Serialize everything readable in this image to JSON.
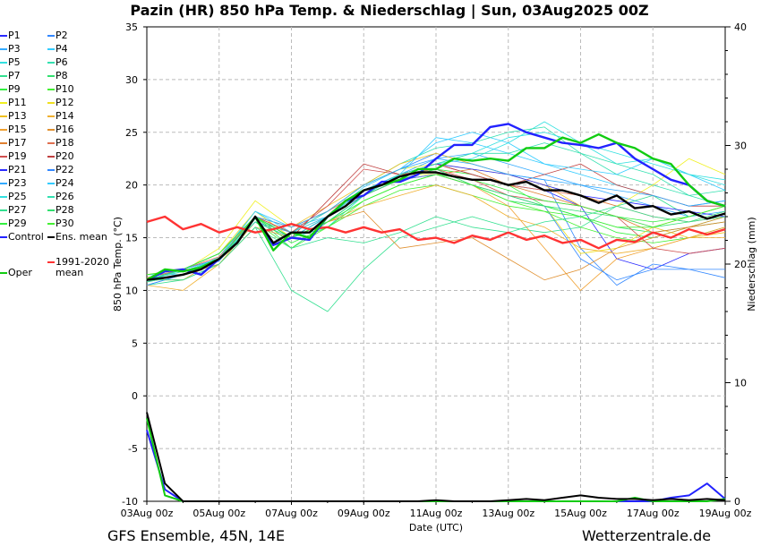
{
  "title": "Pazin  (HR)  850 hPa Temp. & Niederschlag | Sun, 03Aug2025 00Z",
  "footer": {
    "model": "GFS Ensemble, 45N, 14E",
    "source": "Wetterzentrale.de"
  },
  "chart_data": {
    "type": "line",
    "title": "Pazin  (HR)  850 hPa Temp. & Niederschlag | Sun, 03Aug2025 00Z",
    "xlabel": "Date (UTC)",
    "ylabel": "850 hPa Temp. (°C)",
    "y2label": "Niederschlag (mm)",
    "ylim": [
      -10,
      35
    ],
    "y2lim": [
      0,
      40
    ],
    "xlim_days": [
      0,
      16
    ],
    "grid": true,
    "legend_position": "left-outside",
    "x_ticks": [
      "03Aug 00z",
      "05Aug 00z",
      "07Aug 00z",
      "09Aug 00z",
      "11Aug 00z",
      "13Aug 00z",
      "15Aug 00z",
      "17Aug 00z",
      "19Aug 00z"
    ],
    "y_ticks": [
      35,
      30,
      25,
      20,
      15,
      10,
      5,
      0,
      -5,
      -10
    ],
    "y2_ticks": [
      40,
      30,
      20,
      10,
      0
    ],
    "main_series_step_hours": 12,
    "member_series_step_hours": 24,
    "main_series": [
      {
        "name": "Control",
        "color": "#2222ff",
        "width": 2.4,
        "values": [
          11,
          11.8,
          12,
          11.5,
          13,
          14.5,
          17,
          14.3,
          15,
          14.8,
          17,
          18.5,
          19,
          20.3,
          20.3,
          21,
          22.5,
          23.8,
          23.8,
          25.5,
          25.8,
          25,
          24.5,
          24,
          23.8,
          23.5,
          24,
          22.5,
          21.5,
          20.5,
          20,
          18.5,
          18
        ],
        "precip": [
          6,
          1,
          0,
          0,
          0,
          0,
          0,
          0,
          0,
          0,
          0,
          0,
          0,
          0,
          0,
          0,
          0,
          0,
          0,
          0,
          0,
          0,
          0,
          0,
          0,
          0,
          0,
          0,
          0,
          0.3,
          0.5,
          1.5,
          0.2
        ]
      },
      {
        "name": "Oper",
        "color": "#11cc11",
        "width": 2.4,
        "values": [
          11,
          12,
          11.8,
          12.2,
          13,
          14.5,
          17,
          13.8,
          15.5,
          15,
          17,
          18.5,
          19.5,
          20,
          20.5,
          21.5,
          21.5,
          22.5,
          22.3,
          22.5,
          22.3,
          23.5,
          23.5,
          24.5,
          24,
          24.8,
          24,
          23.5,
          22.5,
          22,
          20,
          18.5,
          18
        ],
        "precip": [
          7,
          0.5,
          0,
          0,
          0,
          0,
          0,
          0,
          0,
          0,
          0,
          0,
          0,
          0,
          0,
          0,
          0,
          0,
          0,
          0,
          0,
          0,
          0,
          0,
          0,
          0,
          0,
          0.3,
          0,
          0,
          0,
          0,
          0.2
        ]
      },
      {
        "name": "Ens. mean",
        "color": "#000000",
        "width": 2.4,
        "values": [
          11,
          11.2,
          11.5,
          12,
          13,
          14.5,
          17,
          14.5,
          15.5,
          15.5,
          17,
          18,
          19.5,
          20,
          20.8,
          21.2,
          21.2,
          20.8,
          20.5,
          20.5,
          20,
          20.3,
          19.5,
          19.5,
          19,
          18.3,
          19,
          17.8,
          18,
          17.2,
          17.5,
          16.8,
          17.3
        ],
        "precip": [
          7.5,
          1.5,
          0,
          0,
          0,
          0,
          0,
          0,
          0,
          0,
          0,
          0,
          0,
          0,
          0,
          0,
          0.1,
          0,
          0,
          0,
          0.1,
          0.2,
          0.1,
          0.3,
          0.5,
          0.3,
          0.2,
          0.2,
          0.1,
          0.2,
          0.1,
          0.2,
          0.1
        ]
      },
      {
        "name": "1991-2020 mean",
        "color": "#ff3333",
        "width": 2.4,
        "values": [
          16.5,
          17,
          15.8,
          16.3,
          15.5,
          16,
          15.5,
          15.8,
          16.3,
          15.8,
          16,
          15.5,
          16,
          15.5,
          15.8,
          14.8,
          15,
          14.5,
          15.2,
          14.8,
          15.5,
          14.8,
          15.2,
          14.5,
          14.8,
          14,
          14.8,
          14.6,
          15.5,
          15,
          15.8,
          15.3,
          15.8
        ],
        "precip": []
      }
    ],
    "members": [
      {
        "name": "P1",
        "color": "#2a2aff",
        "values": [
          11,
          12,
          13.5,
          17,
          15,
          16.5,
          19,
          21,
          22,
          21,
          20,
          19.5,
          18,
          13,
          12,
          13.5,
          14
        ]
      },
      {
        "name": "P2",
        "color": "#3388ff",
        "values": [
          10.5,
          11.5,
          12.8,
          16.5,
          15.5,
          17.5,
          20,
          21.5,
          23,
          22,
          21,
          20.5,
          14,
          10.5,
          12.5,
          12,
          11.2
        ]
      },
      {
        "name": "P3",
        "color": "#33aaff",
        "values": [
          11,
          12,
          13,
          17,
          15,
          17,
          19.5,
          21,
          22.5,
          23,
          22,
          21,
          20,
          19,
          18,
          17,
          17.5
        ]
      },
      {
        "name": "P4",
        "color": "#33ccff",
        "values": [
          11.5,
          11.5,
          13.2,
          17.5,
          16,
          17,
          19.8,
          21.5,
          24,
          25,
          24,
          22,
          21,
          20,
          19,
          18,
          18.5
        ]
      },
      {
        "name": "P5",
        "color": "#33e0e0",
        "values": [
          10.8,
          12,
          13.5,
          17,
          15,
          16,
          19,
          21,
          22,
          22.5,
          24,
          26,
          24,
          22,
          22.5,
          21,
          20.5
        ]
      },
      {
        "name": "P6",
        "color": "#33e0b0",
        "values": [
          11,
          11.8,
          13,
          16.8,
          15.5,
          17.5,
          20,
          22,
          23.5,
          24,
          25,
          25.5,
          23,
          21,
          20,
          19,
          19.5
        ]
      },
      {
        "name": "P7",
        "color": "#33e090",
        "values": [
          10.5,
          11,
          12.5,
          16,
          10,
          8,
          12,
          15,
          16,
          17,
          16,
          15.5,
          16,
          18,
          19,
          17,
          18
        ]
      },
      {
        "name": "P8",
        "color": "#33e070",
        "values": [
          11,
          11.5,
          13,
          17,
          14,
          16.5,
          18.5,
          20,
          21,
          20,
          18.5,
          18,
          17,
          16,
          15.5,
          16,
          17
        ]
      },
      {
        "name": "P9",
        "color": "#33f040",
        "values": [
          11.2,
          12,
          13.5,
          17,
          15,
          17,
          19,
          20.5,
          21.5,
          21,
          20,
          18,
          17,
          15.5,
          15,
          16,
          16.5
        ]
      },
      {
        "name": "P10",
        "color": "#44f033",
        "values": [
          10.8,
          11.5,
          13,
          16.5,
          14,
          16,
          18,
          19.5,
          20,
          19,
          18,
          17.5,
          16,
          15,
          14.5,
          15,
          16
        ]
      },
      {
        "name": "P11",
        "color": "#f0f020",
        "values": [
          11,
          11.8,
          14,
          18.5,
          16,
          17.5,
          20,
          21.5,
          22,
          21.5,
          21,
          20,
          19,
          18,
          20,
          22.5,
          21
        ]
      },
      {
        "name": "P12",
        "color": "#f0e020",
        "values": [
          11.5,
          12,
          13.5,
          17.5,
          15,
          17,
          19.5,
          21,
          21,
          20,
          19,
          18,
          13.5,
          14,
          16,
          17,
          18
        ]
      },
      {
        "name": "P13",
        "color": "#f0c020",
        "values": [
          11,
          12,
          13,
          17,
          16,
          18,
          20,
          22,
          23,
          22,
          21,
          20,
          18,
          17,
          16,
          15,
          15.5
        ]
      },
      {
        "name": "P14",
        "color": "#f0b030",
        "values": [
          10.5,
          10,
          12.5,
          16.5,
          15,
          16.5,
          18,
          19,
          20,
          19,
          17,
          16,
          14,
          13.5,
          14,
          15,
          15
        ]
      },
      {
        "name": "P15",
        "color": "#f0a030",
        "values": [
          11,
          11,
          13,
          17,
          15.5,
          17,
          19,
          20.5,
          21,
          20,
          18,
          14,
          10,
          13,
          14,
          15,
          16
        ]
      },
      {
        "name": "P16",
        "color": "#e09030",
        "values": [
          10.8,
          11.5,
          12.5,
          16,
          15,
          16.5,
          17.5,
          14,
          14.5,
          15,
          13,
          11,
          12,
          14,
          15,
          16,
          17
        ]
      },
      {
        "name": "P17",
        "color": "#e08030",
        "values": [
          11,
          12,
          13.5,
          17,
          15,
          17,
          19,
          20.5,
          21,
          21.5,
          20,
          19,
          18,
          17,
          15.5,
          16,
          16.5
        ]
      },
      {
        "name": "P18",
        "color": "#e07050",
        "values": [
          11.2,
          12,
          13.2,
          17,
          16,
          17.5,
          19.5,
          21,
          22,
          21,
          20,
          19.5,
          19,
          18,
          17,
          16.5,
          17
        ]
      },
      {
        "name": "P19",
        "color": "#d05050",
        "values": [
          11,
          11.5,
          13,
          17,
          15.5,
          18,
          21.5,
          21,
          21.5,
          20.5,
          19,
          18.5,
          18,
          17,
          14,
          13.5,
          14
        ]
      },
      {
        "name": "P20",
        "color": "#c04040",
        "values": [
          11,
          12,
          13,
          17,
          15,
          18.5,
          22,
          21,
          22,
          21,
          20,
          21,
          22,
          20,
          19,
          18,
          18
        ]
      },
      {
        "name": "P21",
        "color": "#2a2aff",
        "values": [
          11,
          12,
          13,
          17,
          15,
          17,
          19.5,
          21,
          22,
          21.5,
          21,
          20,
          19,
          18.5,
          18,
          17.5,
          17
        ]
      },
      {
        "name": "P22",
        "color": "#3388ff",
        "values": [
          10.5,
          11.5,
          13,
          16.5,
          15,
          17,
          19,
          20.5,
          21,
          20,
          19,
          18,
          13,
          11,
          12,
          12,
          12
        ]
      },
      {
        "name": "P23",
        "color": "#33aaff",
        "values": [
          11,
          12,
          13.5,
          17,
          16,
          17.5,
          20,
          21.5,
          22.5,
          22,
          21,
          20.5,
          20,
          19.5,
          19,
          18,
          18.5
        ]
      },
      {
        "name": "P24",
        "color": "#33ccff",
        "values": [
          11,
          12,
          13,
          17.5,
          15.5,
          17,
          19.5,
          21,
          24.5,
          24,
          23,
          22,
          21.5,
          21,
          22.5,
          21,
          19.5
        ]
      },
      {
        "name": "P25",
        "color": "#33e0e0",
        "values": [
          11,
          11.8,
          13,
          17,
          15,
          17,
          19.5,
          21,
          22,
          23,
          24.5,
          25,
          24,
          23,
          22,
          21,
          20
        ]
      },
      {
        "name": "P26",
        "color": "#33e0b0",
        "values": [
          10.8,
          11.5,
          13,
          16.5,
          15,
          16.5,
          19,
          21,
          22,
          23,
          23,
          24,
          23,
          22,
          21,
          19,
          18
        ]
      },
      {
        "name": "P27",
        "color": "#33e090",
        "values": [
          11,
          11,
          12.5,
          16,
          14,
          15,
          14.5,
          15.5,
          17,
          16,
          15.5,
          16.5,
          17,
          18,
          17,
          16.5,
          17
        ]
      },
      {
        "name": "P28",
        "color": "#33e070",
        "values": [
          11,
          12,
          13.5,
          17,
          15,
          16.5,
          19,
          20.5,
          21.5,
          20,
          19,
          18,
          17.5,
          17,
          16,
          16.5,
          17.5
        ]
      },
      {
        "name": "P29",
        "color": "#33f040",
        "values": [
          11,
          11.5,
          13,
          17,
          14.5,
          16,
          18.5,
          20,
          21,
          20.5,
          19.5,
          18.5,
          18,
          17,
          16.5,
          17,
          18
        ]
      },
      {
        "name": "P30",
        "color": "#44f033",
        "values": [
          11.5,
          12,
          13.5,
          17,
          15,
          16.5,
          18.5,
          20,
          21,
          20,
          18.5,
          17.5,
          17,
          16,
          16,
          17,
          18
        ]
      }
    ]
  },
  "legend": {
    "items": [
      {
        "label": "P1",
        "color": "#2a2aff"
      },
      {
        "label": "P2",
        "color": "#3388ff"
      },
      {
        "label": "P3",
        "color": "#33aaff"
      },
      {
        "label": "P4",
        "color": "#33ccff"
      },
      {
        "label": "P5",
        "color": "#33e0e0"
      },
      {
        "label": "P6",
        "color": "#33e0b0"
      },
      {
        "label": "P7",
        "color": "#33e090"
      },
      {
        "label": "P8",
        "color": "#33e070"
      },
      {
        "label": "P9",
        "color": "#33f040"
      },
      {
        "label": "P10",
        "color": "#44f033"
      },
      {
        "label": "P11",
        "color": "#f0f020"
      },
      {
        "label": "P12",
        "color": "#f0e020"
      },
      {
        "label": "P13",
        "color": "#f0c020"
      },
      {
        "label": "P14",
        "color": "#f0b030"
      },
      {
        "label": "P15",
        "color": "#f0a030"
      },
      {
        "label": "P16",
        "color": "#e09030"
      },
      {
        "label": "P17",
        "color": "#e08030"
      },
      {
        "label": "P18",
        "color": "#e07050"
      },
      {
        "label": "P19",
        "color": "#d05050"
      },
      {
        "label": "P20",
        "color": "#c04040"
      },
      {
        "label": "P21",
        "color": "#2a2aff"
      },
      {
        "label": "P22",
        "color": "#3388ff"
      },
      {
        "label": "P23",
        "color": "#33aaff"
      },
      {
        "label": "P24",
        "color": "#33ccff"
      },
      {
        "label": "P25",
        "color": "#33e0e0"
      },
      {
        "label": "P26",
        "color": "#33e0b0"
      },
      {
        "label": "P27",
        "color": "#33e090"
      },
      {
        "label": "P28",
        "color": "#33e070"
      },
      {
        "label": "P29",
        "color": "#33f040"
      },
      {
        "label": "P30",
        "color": "#44f033"
      },
      {
        "label": "Control",
        "color": "#2222ff"
      },
      {
        "label": "Ens. mean",
        "color": "#000000"
      }
    ],
    "oper": {
      "label": "Oper",
      "color": "#11cc11"
    },
    "climate": {
      "label": "1991-2020",
      "label2": "mean",
      "color": "#ff3333"
    }
  }
}
